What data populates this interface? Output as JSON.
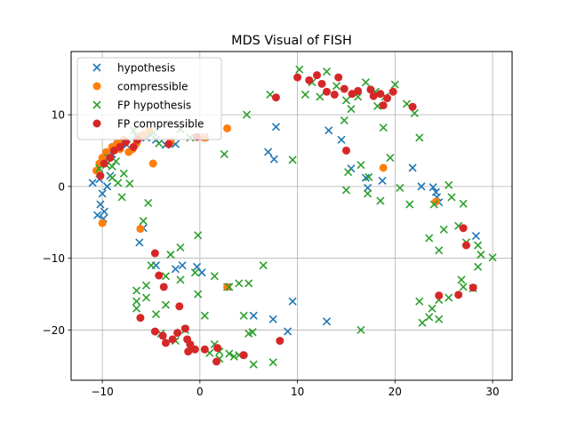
{
  "chart_data": {
    "type": "scatter",
    "title": "MDS Visual of FISH",
    "xlabel": "",
    "ylabel": "",
    "xlim": [
      -13.2,
      32.0
    ],
    "ylim": [
      -27.0,
      18.8
    ],
    "xticks": [
      -10,
      0,
      10,
      20,
      30
    ],
    "yticks": [
      -20,
      -10,
      0,
      10
    ],
    "grid": true,
    "legend_position": "upper left",
    "series": [
      {
        "name": "hypothesis",
        "marker": "x",
        "color": "#1f77b4",
        "points": [
          [
            -11.0,
            0.5
          ],
          [
            -10.5,
            -4.0
          ],
          [
            -10.2,
            -2.5
          ],
          [
            -9.8,
            -3.5
          ],
          [
            -9.9,
            -4.5
          ],
          [
            -10.0,
            -1.0
          ],
          [
            -9.5,
            0.0
          ],
          [
            -9.2,
            1.5
          ],
          [
            -10.3,
            1.0
          ],
          [
            -9.0,
            4.5
          ],
          [
            -8.8,
            5.5
          ],
          [
            -8.0,
            6.0
          ],
          [
            -7.5,
            5.8
          ],
          [
            -6.5,
            7.0
          ],
          [
            -5.5,
            6.8
          ],
          [
            -4.8,
            7.5
          ],
          [
            -4.5,
            6.5
          ],
          [
            -3.5,
            5.8
          ],
          [
            -3.0,
            6.2
          ],
          [
            -2.5,
            5.9
          ],
          [
            0.5,
            6.9
          ],
          [
            -6.2,
            -7.8
          ],
          [
            -5.8,
            -5.8
          ],
          [
            -4.5,
            -11.0
          ],
          [
            -2.5,
            -11.5
          ],
          [
            -1.8,
            -11.0
          ],
          [
            -0.3,
            -11.2
          ],
          [
            0.2,
            -12.0
          ],
          [
            2.8,
            -14.0
          ],
          [
            5.5,
            -18.0
          ],
          [
            7.5,
            -18.5
          ],
          [
            9.5,
            -16.0
          ],
          [
            9.0,
            -20.2
          ],
          [
            13.0,
            -18.8
          ],
          [
            7.0,
            4.8
          ],
          [
            7.6,
            3.8
          ],
          [
            7.8,
            8.3
          ],
          [
            13.2,
            7.8
          ],
          [
            14.5,
            6.5
          ],
          [
            15.5,
            2.5
          ],
          [
            17.0,
            1.2
          ],
          [
            17.2,
            -0.2
          ],
          [
            18.7,
            0.8
          ],
          [
            21.8,
            2.6
          ],
          [
            22.7,
            0.0
          ],
          [
            23.9,
            -0.1
          ],
          [
            24.2,
            -0.8
          ],
          [
            24.3,
            -1.5
          ],
          [
            24.5,
            -2.2
          ],
          [
            28.3,
            -6.9
          ]
        ]
      },
      {
        "name": "compressible",
        "marker": "o",
        "color": "#ff7f0e",
        "points": [
          [
            -10.6,
            2.2
          ],
          [
            -10.3,
            3.2
          ],
          [
            -10.0,
            4.0
          ],
          [
            -9.6,
            4.8
          ],
          [
            -9.0,
            5.5
          ],
          [
            -8.5,
            6.0
          ],
          [
            -8.2,
            5.2
          ],
          [
            -7.8,
            6.5
          ],
          [
            -7.3,
            4.8
          ],
          [
            -6.9,
            5.2
          ],
          [
            -6.5,
            6.0
          ],
          [
            -6.2,
            6.8
          ],
          [
            -5.8,
            7.2
          ],
          [
            -5.2,
            7.8
          ],
          [
            -4.8,
            3.2
          ],
          [
            -10.0,
            -5.1
          ],
          [
            -6.1,
            -5.9
          ],
          [
            -3.0,
            6.2
          ],
          [
            0.5,
            6.8
          ],
          [
            2.8,
            8.1
          ],
          [
            2.8,
            -14.0
          ],
          [
            18.8,
            2.6
          ],
          [
            24.2,
            -2.1
          ]
        ]
      },
      {
        "name": "FP hypothesis",
        "marker": "x",
        "color": "#2ca02c",
        "points": [
          [
            -10.3,
            2.5
          ],
          [
            -9.6,
            3.0
          ],
          [
            -9.0,
            2.8
          ],
          [
            -8.6,
            3.5
          ],
          [
            -9.4,
            4.0
          ],
          [
            -9.0,
            1.2
          ],
          [
            -8.4,
            0.5
          ],
          [
            -7.8,
            1.8
          ],
          [
            -7.2,
            0.4
          ],
          [
            -8.0,
            -1.5
          ],
          [
            -6.8,
            7.8
          ],
          [
            -5.0,
            7.2
          ],
          [
            -4.2,
            6.0
          ],
          [
            -2.0,
            8.0
          ],
          [
            -1.0,
            6.8
          ],
          [
            2.5,
            4.5
          ],
          [
            4.8,
            10.0
          ],
          [
            7.2,
            12.8
          ],
          [
            9.5,
            3.7
          ],
          [
            10.8,
            12.8
          ],
          [
            10.2,
            16.3
          ],
          [
            11.5,
            14.5
          ],
          [
            12.3,
            12.5
          ],
          [
            13.0,
            16.0
          ],
          [
            14.0,
            14.0
          ],
          [
            15.0,
            12.0
          ],
          [
            14.8,
            9.2
          ],
          [
            15.5,
            10.8
          ],
          [
            16.2,
            12.5
          ],
          [
            17.0,
            14.5
          ],
          [
            18.0,
            13.2
          ],
          [
            18.2,
            11.2
          ],
          [
            19.0,
            12.5
          ],
          [
            20.0,
            14.2
          ],
          [
            21.2,
            11.5
          ],
          [
            22.0,
            10.2
          ],
          [
            22.5,
            6.8
          ],
          [
            18.8,
            8.2
          ],
          [
            19.5,
            4.0
          ],
          [
            17.3,
            1.3
          ],
          [
            15.2,
            2.0
          ],
          [
            15.0,
            -0.5
          ],
          [
            16.5,
            3.0
          ],
          [
            17.2,
            -1.0
          ],
          [
            18.5,
            -2.0
          ],
          [
            20.5,
            -0.2
          ],
          [
            21.5,
            -2.5
          ],
          [
            24.0,
            -2.5
          ],
          [
            25.5,
            0.2
          ],
          [
            25.8,
            -1.5
          ],
          [
            27.0,
            -2.4
          ],
          [
            26.5,
            -5.5
          ],
          [
            25.0,
            -6.0
          ],
          [
            23.5,
            -7.2
          ],
          [
            24.5,
            -8.9
          ],
          [
            27.3,
            -7.8
          ],
          [
            28.5,
            -8.2
          ],
          [
            28.8,
            -9.5
          ],
          [
            30.0,
            -9.9
          ],
          [
            28.5,
            -11.2
          ],
          [
            26.8,
            -13.0
          ],
          [
            27.0,
            -14.0
          ],
          [
            28.0,
            -14.2
          ],
          [
            25.5,
            -15.5
          ],
          [
            24.5,
            -15.8
          ],
          [
            23.8,
            -17.0
          ],
          [
            23.5,
            -18.2
          ],
          [
            24.5,
            -18.5
          ],
          [
            22.8,
            -19.0
          ],
          [
            22.5,
            -16.0
          ],
          [
            16.5,
            -20.0
          ],
          [
            7.5,
            -24.5
          ],
          [
            5.5,
            -24.8
          ],
          [
            5.4,
            -20.3
          ],
          [
            4.5,
            -18.0
          ],
          [
            5.0,
            -13.5
          ],
          [
            6.5,
            -11.0
          ],
          [
            4.0,
            -13.5
          ],
          [
            3.0,
            -14.0
          ],
          [
            1.5,
            -12.5
          ],
          [
            -0.5,
            -12.0
          ],
          [
            -0.2,
            -6.8
          ],
          [
            -2.0,
            -8.5
          ],
          [
            -3.0,
            -9.5
          ],
          [
            -3.5,
            -12.5
          ],
          [
            -5.0,
            -11.0
          ],
          [
            -5.5,
            -13.8
          ],
          [
            -6.5,
            -14.5
          ],
          [
            -6.5,
            -16.0
          ],
          [
            -6.5,
            -17.0
          ],
          [
            -5.5,
            -15.5
          ],
          [
            -5.8,
            -4.8
          ],
          [
            -5.3,
            -2.3
          ],
          [
            -2.0,
            -13.0
          ],
          [
            -0.2,
            -15.0
          ],
          [
            -3.5,
            -16.5
          ],
          [
            -4.5,
            -17.8
          ],
          [
            -4.0,
            -20.5
          ],
          [
            -2.5,
            -21.5
          ],
          [
            -1.5,
            -20.0
          ],
          [
            -1.0,
            -22.5
          ],
          [
            0.5,
            -18.0
          ],
          [
            1.0,
            -23.2
          ],
          [
            2.0,
            -24.0
          ],
          [
            3.0,
            -23.3
          ],
          [
            1.5,
            -22.0
          ],
          [
            3.5,
            -23.7
          ],
          [
            4.0,
            -23.5
          ],
          [
            5.0,
            -20.5
          ],
          [
            2.0,
            -23.0
          ]
        ]
      },
      {
        "name": "FP compressible",
        "marker": "o",
        "color": "#d62728",
        "points": [
          [
            -10.2,
            1.5
          ],
          [
            -9.8,
            3.2
          ],
          [
            -9.2,
            4.0
          ],
          [
            -8.8,
            5.0
          ],
          [
            -8.2,
            5.5
          ],
          [
            -7.6,
            6.2
          ],
          [
            -6.8,
            5.5
          ],
          [
            -6.4,
            6.5
          ],
          [
            -3.2,
            5.9
          ],
          [
            -0.3,
            6.9
          ],
          [
            -4.6,
            -9.3
          ],
          [
            -4.2,
            -12.4
          ],
          [
            -3.7,
            -14.0
          ],
          [
            -6.1,
            -18.3
          ],
          [
            -4.6,
            -20.2
          ],
          [
            -3.8,
            -20.8
          ],
          [
            -3.5,
            -21.8
          ],
          [
            -2.8,
            -21.3
          ],
          [
            -2.3,
            -20.4
          ],
          [
            -2.1,
            -16.7
          ],
          [
            -1.5,
            -19.8
          ],
          [
            -1.3,
            -21.3
          ],
          [
            -1.0,
            -22.0
          ],
          [
            -0.5,
            -22.7
          ],
          [
            -1.2,
            -23.0
          ],
          [
            0.5,
            -22.7
          ],
          [
            1.8,
            -22.5
          ],
          [
            1.7,
            -24.4
          ],
          [
            4.5,
            -23.5
          ],
          [
            8.2,
            -21.5
          ],
          [
            7.8,
            12.4
          ],
          [
            10.0,
            15.2
          ],
          [
            11.2,
            14.8
          ],
          [
            12.0,
            15.5
          ],
          [
            12.5,
            14.3
          ],
          [
            13.0,
            13.2
          ],
          [
            13.8,
            12.8
          ],
          [
            14.2,
            15.2
          ],
          [
            14.8,
            13.6
          ],
          [
            15.6,
            12.9
          ],
          [
            16.2,
            13.3
          ],
          [
            17.5,
            13.5
          ],
          [
            17.8,
            12.6
          ],
          [
            18.5,
            12.9
          ],
          [
            18.8,
            11.3
          ],
          [
            19.2,
            12.3
          ],
          [
            19.8,
            13.2
          ],
          [
            21.8,
            11.1
          ],
          [
            15.0,
            5.0
          ],
          [
            24.5,
            -15.2
          ],
          [
            26.5,
            -15.1
          ],
          [
            27.3,
            -8.2
          ],
          [
            28.0,
            -14.1
          ],
          [
            27.0,
            -5.8
          ]
        ]
      }
    ]
  }
}
